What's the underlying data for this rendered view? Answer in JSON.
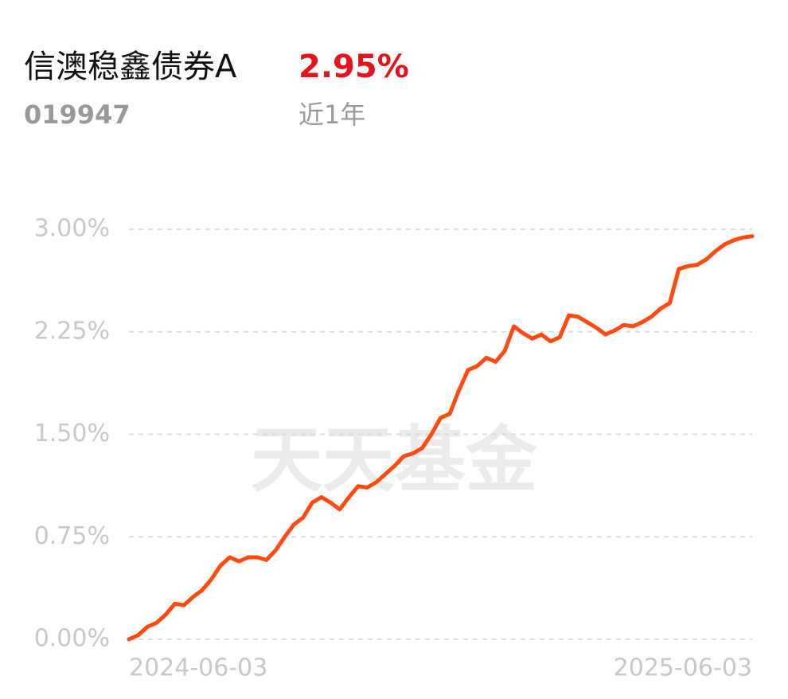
{
  "header": {
    "title": "信澳稳鑫债券A",
    "return": "2.95%",
    "code": "019947",
    "period": "近1年"
  },
  "chart_data": {
    "type": "line",
    "watermark": "天天基金",
    "categories": [
      "2024-06-03",
      null,
      null,
      null,
      null,
      null,
      null,
      null,
      null,
      null,
      null,
      null,
      null,
      null,
      null,
      null,
      null,
      null,
      null,
      null,
      null,
      null,
      null,
      null,
      null,
      null,
      null,
      null,
      null,
      null,
      null,
      null,
      null,
      null,
      null,
      null,
      null,
      null,
      null,
      null,
      null,
      null,
      null,
      null,
      null,
      null,
      null,
      null,
      null,
      null,
      null,
      null,
      null,
      null,
      null,
      null,
      null,
      null,
      null,
      null,
      null,
      null,
      null,
      null,
      null,
      null,
      null,
      null,
      "2025-06-03"
    ],
    "values": [
      0,
      0.03,
      0.09,
      0.12,
      0.18,
      0.26,
      0.25,
      0.31,
      0.36,
      0.44,
      0.54,
      0.6,
      0.57,
      0.6,
      0.6,
      0.58,
      0.65,
      0.75,
      0.84,
      0.89,
      1.0,
      1.04,
      1.0,
      0.95,
      1.04,
      1.12,
      1.11,
      1.15,
      1.21,
      1.27,
      1.34,
      1.36,
      1.4,
      1.5,
      1.62,
      1.65,
      1.82,
      1.97,
      2.0,
      2.06,
      2.03,
      2.11,
      2.29,
      2.24,
      2.2,
      2.23,
      2.18,
      2.21,
      2.37,
      2.36,
      2.32,
      2.28,
      2.23,
      2.26,
      2.3,
      2.29,
      2.32,
      2.36,
      2.42,
      2.46,
      2.71,
      2.73,
      2.74,
      2.78,
      2.84,
      2.89,
      2.92,
      2.94,
      2.95
    ],
    "color": "#ff4a12",
    "ylim": [
      0,
      3
    ],
    "yticks": [
      {
        "value": 0,
        "label": "0.00%"
      },
      {
        "value": 0.75,
        "label": "0.75%"
      },
      {
        "value": 1.5,
        "label": "1.50%"
      },
      {
        "value": 2.25,
        "label": "2.25%"
      },
      {
        "value": 3,
        "label": "3.00%"
      }
    ],
    "grid": true
  }
}
